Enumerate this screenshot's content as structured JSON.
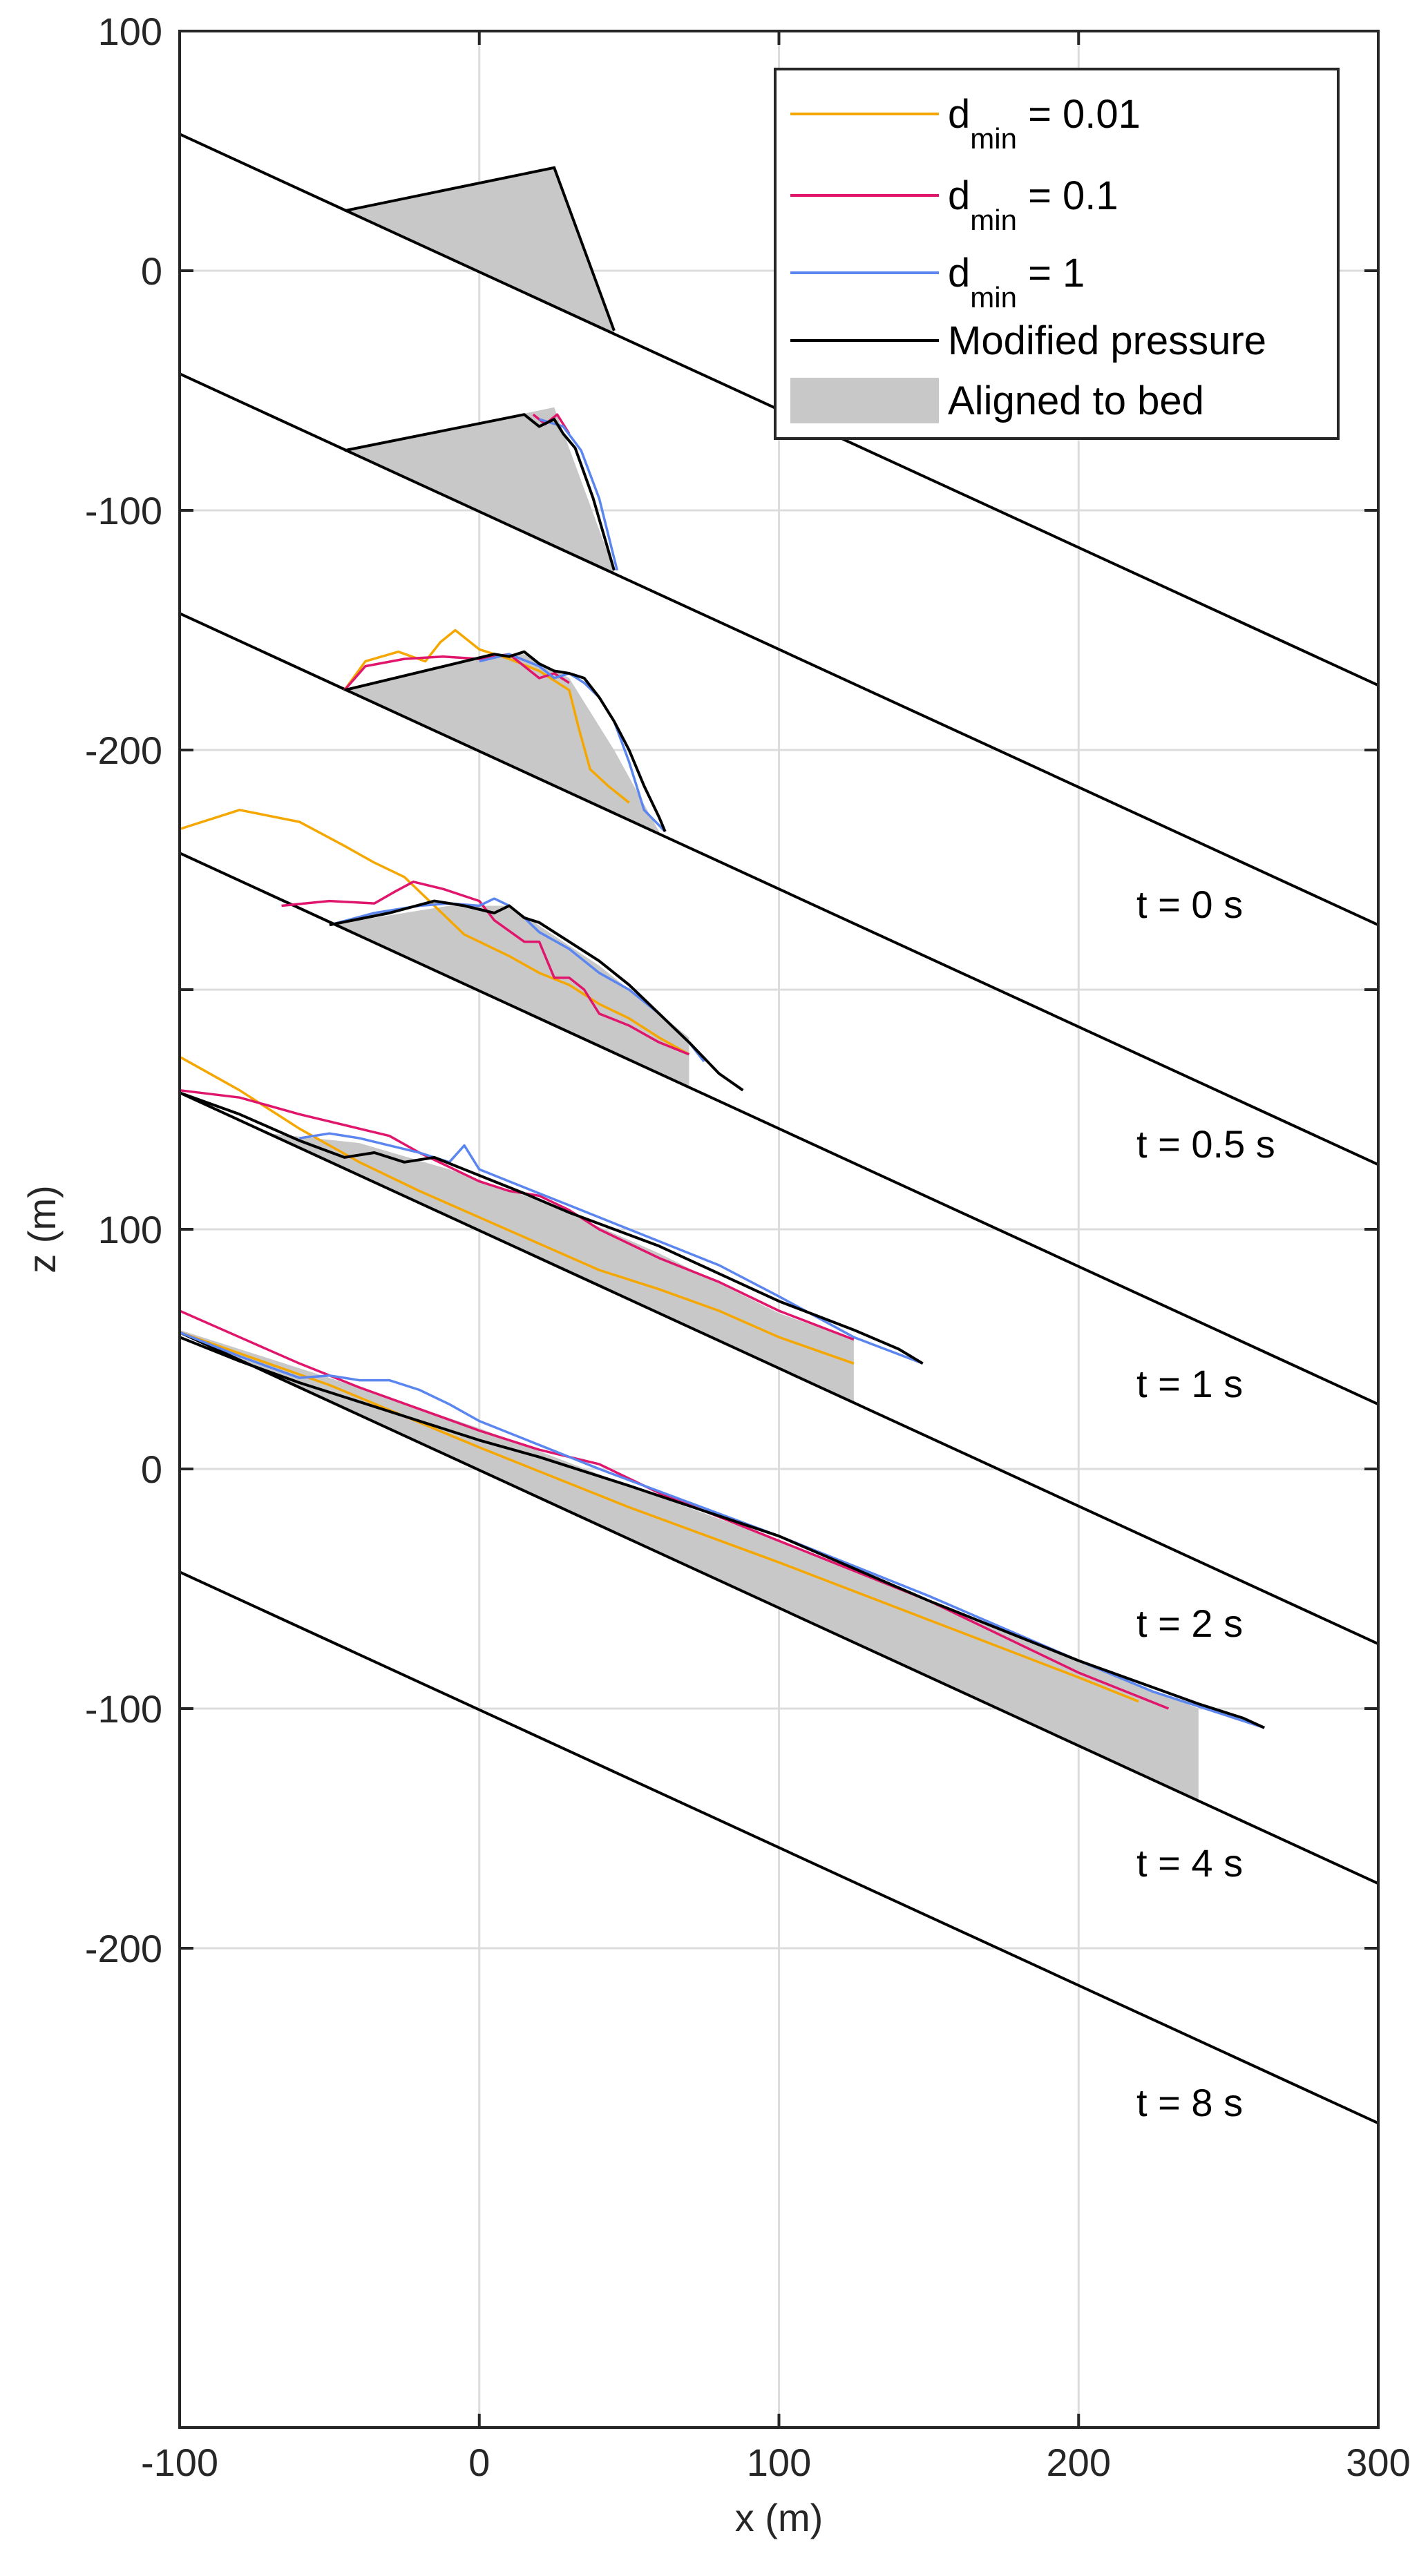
{
  "chart_data": {
    "type": "line",
    "xlabel": "x (m)",
    "ylabel": "z (m)",
    "xlim": [
      -100,
      300
    ],
    "x_ticks": [
      -100,
      0,
      100,
      200,
      300
    ],
    "panel_spacing_m": 100,
    "ticks_top": [
      {
        "offset": 0,
        "label": "100"
      },
      {
        "offset": -100,
        "label": "0"
      },
      {
        "offset": -200,
        "label": "-100"
      },
      {
        "offset": -300,
        "label": "-200"
      },
      {
        "offset": -400,
        "label": ""
      },
      {
        "offset": -500,
        "label": "100"
      },
      {
        "offset": -600,
        "label": "0"
      },
      {
        "offset": -700,
        "label": "-100"
      },
      {
        "offset": -800,
        "label": "-200"
      }
    ],
    "grid": true,
    "legend_position": "top-right",
    "legend": [
      {
        "key": "dmin_001",
        "base": "d",
        "sub": "min",
        "rest": " = 0.01",
        "color": "#F5A700"
      },
      {
        "key": "dmin_01",
        "base": "d",
        "sub": "min",
        "rest": " = 0.1",
        "color": "#E0166D"
      },
      {
        "key": "dmin_1",
        "base": "d",
        "sub": "min",
        "rest": " = 1",
        "color": "#5B86F0"
      },
      {
        "key": "modified",
        "text": "Modified pressure",
        "color": "#000000"
      },
      {
        "key": "aligned",
        "text": "Aligned to bed",
        "color": "#C8C8C8"
      }
    ],
    "bed_line": {
      "x": [
        -100,
        300
      ],
      "z": [
        57,
        -173
      ]
    },
    "initial_mass": {
      "x": [
        -45,
        25,
        45
      ],
      "z": [
        25,
        43,
        -25
      ]
    },
    "panels": [
      {
        "label": "",
        "offset": 0,
        "mass": {
          "x": [
            -45,
            25,
            45
          ],
          "z": [
            25,
            43,
            -25
          ]
        },
        "series": {}
      },
      {
        "label": "t = 0 s",
        "offset": -100,
        "mass": {
          "x": [
            -45,
            25,
            45
          ],
          "z": [
            25,
            43,
            -25
          ]
        },
        "series": {
          "modified": {
            "x": [
              -45,
              15,
              20,
              25,
              28,
              32,
              38,
              45
            ],
            "z": [
              25,
              40,
              35,
              38,
              32,
              26,
              5,
              -25
            ]
          },
          "dmin_01": {
            "x": [
              18,
              22,
              26,
              30
            ],
            "z": [
              40,
              36,
              40,
              32
            ]
          },
          "dmin_1": {
            "x": [
              20,
              28,
              34,
              40,
              46
            ],
            "z": [
              38,
              35,
              25,
              5,
              -25
            ]
          }
        }
      },
      {
        "label": "t = 0.5 s",
        "offset": -200,
        "mass": {
          "x": [
            -45,
            5,
            15,
            30,
            45,
            60
          ],
          "z": [
            25,
            40,
            40,
            30,
            0,
            -34
          ]
        },
        "series": {
          "dmin_001": {
            "x": [
              -45,
              -38,
              -27,
              -18,
              -13,
              -8,
              0,
              10,
              20,
              25,
              30,
              33,
              37,
              43,
              50
            ],
            "z": [
              25,
              37,
              41,
              37,
              45,
              50,
              42,
              38,
              33,
              29,
              25,
              10,
              -8,
              -15,
              -22
            ]
          },
          "dmin_01": {
            "x": [
              -45,
              -38,
              -25,
              -12,
              0,
              10,
              15,
              20,
              25,
              30
            ],
            "z": [
              25,
              35,
              38,
              39,
              38,
              40,
              35,
              30,
              32,
              28
            ]
          },
          "dmin_1": {
            "x": [
              0,
              10,
              20,
              25,
              30,
              35,
              40,
              45,
              50,
              55,
              62
            ],
            "z": [
              37,
              40,
              35,
              30,
              32,
              28,
              22,
              12,
              -5,
              -25,
              -34
            ]
          },
          "modified": {
            "x": [
              -45,
              5,
              10,
              15,
              20,
              25,
              30,
              35,
              40,
              45,
              50,
              55,
              60,
              62
            ],
            "z": [
              25,
              40,
              39,
              41,
              36,
              33,
              32,
              30,
              22,
              12,
              0,
              -15,
              -28,
              -34
            ]
          }
        }
      },
      {
        "label": "t = 1 s",
        "offset": -300,
        "mass": {
          "x": [
            -50,
            -10,
            10,
            40,
            70
          ],
          "z": [
            27,
            35,
            35,
            10,
            -20
          ]
        },
        "series": {
          "dmin_001": {
            "x": [
              -100,
              -80,
              -60,
              -45,
              -35,
              -25,
              -15,
              -5,
              0,
              10,
              20,
              30,
              40,
              50,
              60,
              70
            ],
            "z": [
              67,
              75,
              70,
              60,
              53,
              47,
              35,
              23,
              20,
              14,
              7,
              2,
              -6,
              -12,
              -20,
              -27
            ]
          },
          "dmin_01": {
            "x": [
              -66,
              -50,
              -35,
              -28,
              -22,
              -12,
              0,
              5,
              15,
              20,
              25,
              30,
              35,
              40,
              50,
              60,
              70
            ],
            "z": [
              35,
              37,
              36,
              41,
              45,
              42,
              37,
              29,
              20,
              20,
              5,
              5,
              0,
              -10,
              -15,
              -22,
              -27
            ]
          },
          "dmin_1": {
            "x": [
              -50,
              -35,
              -20,
              -10,
              0,
              5,
              10,
              15,
              20,
              30,
              40,
              50,
              60,
              70,
              75
            ],
            "z": [
              27,
              32,
              35,
              36,
              35,
              38,
              35,
              30,
              24,
              17,
              7,
              0,
              -10,
              -22,
              -30
            ]
          },
          "modified": {
            "x": [
              -50,
              -30,
              -15,
              -5,
              5,
              10,
              15,
              20,
              25,
              30,
              40,
              50,
              60,
              70,
              80,
              88
            ],
            "z": [
              27,
              32,
              37,
              35,
              32,
              35,
              30,
              28,
              24,
              20,
              12,
              2,
              -10,
              -22,
              -35,
              -42
            ]
          }
        }
      },
      {
        "label": "t = 2 s",
        "offset": -400,
        "mass": {
          "x": [
            -70,
            -40,
            -10,
            20,
            60,
            100,
            125
          ],
          "z": [
            40,
            36,
            25,
            12,
            -10,
            -35,
            -46
          ]
        },
        "series": {
          "dmin_001": {
            "x": [
              -100,
              -80,
              -60,
              -40,
              -20,
              0,
              20,
              40,
              60,
              80,
              100,
              125
            ],
            "z": [
              72,
              58,
              42,
              28,
              16,
              5,
              -6,
              -17,
              -25,
              -34,
              -45,
              -56
            ]
          },
          "dmin_01": {
            "x": [
              -100,
              -80,
              -60,
              -40,
              -30,
              -20,
              -10,
              0,
              10,
              20,
              30,
              40,
              50,
              60,
              80,
              100,
              125
            ],
            "z": [
              58,
              55,
              48,
              42,
              39,
              32,
              26,
              20,
              16,
              14,
              8,
              0,
              -6,
              -12,
              -22,
              -34,
              -46
            ]
          },
          "dmin_1": {
            "x": [
              -60,
              -50,
              -40,
              -30,
              -20,
              -10,
              -5,
              0,
              10,
              20,
              30,
              50,
              80,
              100,
              125,
              148
            ],
            "z": [
              38,
              40,
              38,
              35,
              32,
              28,
              35,
              25,
              20,
              15,
              10,
              0,
              -15,
              -28,
              -45,
              -56
            ]
          },
          "modified": {
            "x": [
              -100,
              -80,
              -60,
              -45,
              -35,
              -25,
              -15,
              -5,
              5,
              15,
              30,
              60,
              100,
              125,
              140,
              148
            ],
            "z": [
              57,
              48,
              37,
              30,
              32,
              28,
              30,
              25,
              20,
              15,
              7,
              -7,
              -30,
              -42,
              -50,
              -56
            ]
          }
        }
      },
      {
        "label": "t = 4 s",
        "offset": -500,
        "mass": {
          "x": [
            -100,
            -50,
            0,
            50,
            100,
            150,
            200,
            240
          ],
          "z": [
            58,
            38,
            17,
            -7,
            -30,
            -55,
            -80,
            -100
          ]
        },
        "series": {
          "dmin_001": {
            "x": [
              -100,
              -50,
              0,
              50,
              100,
              150,
              200,
              220
            ],
            "z": [
              57,
              35,
              9,
              -16,
              -39,
              -63,
              -87,
              -97
            ]
          },
          "dmin_01": {
            "x": [
              -100,
              -80,
              -60,
              -40,
              -20,
              0,
              20,
              40,
              60,
              80,
              100,
              150,
              200,
              220,
              230
            ],
            "z": [
              66,
              55,
              44,
              34,
              25,
              16,
              8,
              2,
              -10,
              -20,
              -30,
              -55,
              -85,
              -95,
              -100
            ]
          },
          "dmin_1": {
            "x": [
              -100,
              -80,
              -60,
              -50,
              -40,
              -30,
              -20,
              -10,
              0,
              20,
              40,
              100,
              150,
              200,
              225,
              262
            ],
            "z": [
              57,
              47,
              38,
              39,
              37,
              37,
              33,
              27,
              20,
              10,
              0,
              -28,
              -53,
              -80,
              -93,
              -108
            ]
          },
          "modified": {
            "x": [
              -100,
              -80,
              -60,
              -40,
              -20,
              0,
              20,
              50,
              100,
              150,
              200,
              240,
              255,
              262
            ],
            "z": [
              55,
              45,
              36,
              28,
              20,
              12,
              5,
              -7,
              -28,
              -55,
              -80,
              -98,
              -104,
              -108
            ]
          }
        }
      },
      {
        "label": "t = 8 s",
        "offset": -600,
        "mass": null,
        "series": {}
      }
    ],
    "time_labels": [
      "t = 0 s",
      "t = 0.5 s",
      "t = 1 s",
      "t = 2 s",
      "t = 4 s",
      "t = 8 s"
    ]
  }
}
